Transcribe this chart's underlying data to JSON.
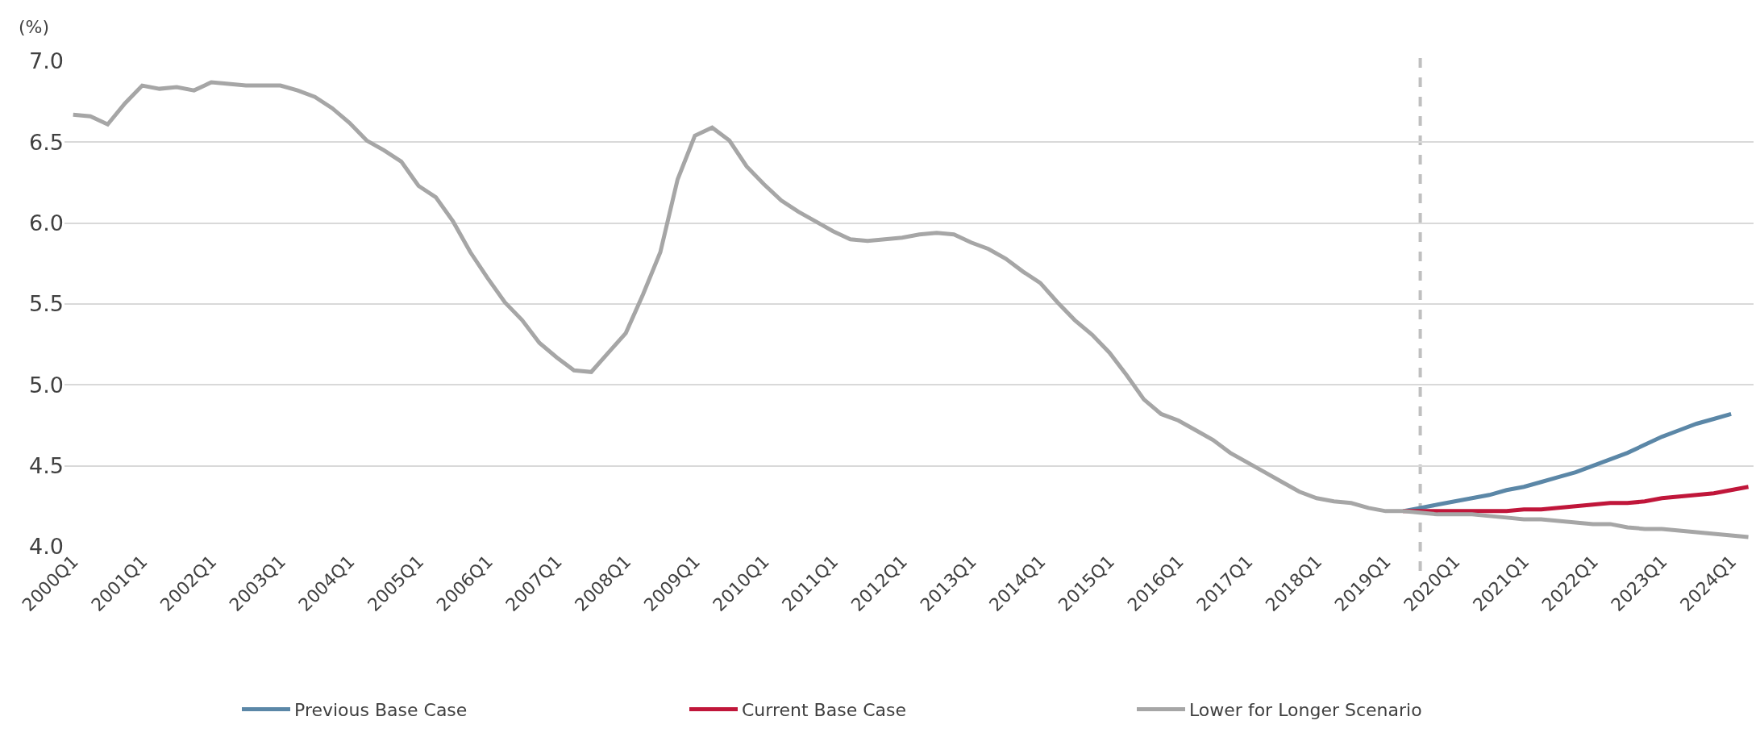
{
  "chart_data": {
    "type": "line",
    "ylabel": "(%)",
    "categories": [
      "2000Q1",
      null,
      null,
      null,
      "2001Q1",
      null,
      null,
      null,
      "2002Q1",
      null,
      null,
      null,
      "2003Q1",
      null,
      null,
      null,
      "2004Q1",
      null,
      null,
      null,
      "2005Q1",
      null,
      null,
      null,
      "2006Q1",
      null,
      null,
      null,
      "2007Q1",
      null,
      null,
      null,
      "2008Q1",
      null,
      null,
      null,
      "2009Q1",
      null,
      null,
      null,
      "2010Q1",
      null,
      null,
      null,
      "2011Q1",
      null,
      null,
      null,
      "2012Q1",
      null,
      null,
      null,
      "2013Q1",
      null,
      null,
      null,
      "2014Q1",
      null,
      null,
      null,
      "2015Q1",
      null,
      null,
      null,
      "2016Q1",
      null,
      null,
      null,
      "2017Q1",
      null,
      null,
      null,
      "2018Q1",
      null,
      null,
      null,
      "2019Q1",
      null,
      null,
      null,
      "2020Q1",
      null,
      null,
      null,
      "2021Q1",
      null,
      null,
      null,
      "2022Q1",
      null,
      null,
      null,
      "2023Q1",
      null,
      null,
      null,
      "2024Q1",
      null
    ],
    "series": [
      {
        "name": "Previous Base Case",
        "color": "#5b87a7",
        "values": [
          null,
          null,
          null,
          null,
          null,
          null,
          null,
          null,
          null,
          null,
          null,
          null,
          null,
          null,
          null,
          null,
          null,
          null,
          null,
          null,
          null,
          null,
          null,
          null,
          null,
          null,
          null,
          null,
          null,
          null,
          null,
          null,
          null,
          null,
          null,
          null,
          null,
          null,
          null,
          null,
          null,
          null,
          null,
          null,
          null,
          null,
          null,
          null,
          null,
          null,
          null,
          null,
          null,
          null,
          null,
          null,
          null,
          null,
          null,
          null,
          null,
          null,
          null,
          null,
          null,
          null,
          null,
          null,
          null,
          null,
          null,
          null,
          null,
          null,
          null,
          null,
          null,
          4.22,
          4.24,
          4.26,
          4.28,
          4.3,
          4.32,
          4.35,
          4.37,
          4.4,
          4.43,
          4.46,
          4.5,
          4.54,
          4.58,
          4.63,
          4.68,
          4.72,
          4.76,
          4.79,
          4.82,
          null
        ]
      },
      {
        "name": "Current Base Case",
        "color": "#c0163a",
        "values": [
          null,
          null,
          null,
          null,
          null,
          null,
          null,
          null,
          null,
          null,
          null,
          null,
          null,
          null,
          null,
          null,
          null,
          null,
          null,
          null,
          null,
          null,
          null,
          null,
          null,
          null,
          null,
          null,
          null,
          null,
          null,
          null,
          null,
          null,
          null,
          null,
          null,
          null,
          null,
          null,
          null,
          null,
          null,
          null,
          null,
          null,
          null,
          null,
          null,
          null,
          null,
          null,
          null,
          null,
          null,
          null,
          null,
          null,
          null,
          null,
          null,
          null,
          null,
          null,
          null,
          null,
          null,
          null,
          null,
          null,
          null,
          null,
          null,
          null,
          null,
          null,
          null,
          4.22,
          4.22,
          4.22,
          4.22,
          4.22,
          4.22,
          4.22,
          4.23,
          4.23,
          4.24,
          4.25,
          4.26,
          4.27,
          4.27,
          4.28,
          4.3,
          4.31,
          4.32,
          4.33,
          4.35,
          4.37
        ]
      },
      {
        "name": "Lower for Longer Scenario",
        "color": "#a6a6a6",
        "values": [
          6.67,
          6.66,
          6.61,
          6.74,
          6.85,
          6.83,
          6.84,
          6.82,
          6.87,
          6.86,
          6.85,
          6.85,
          6.85,
          6.82,
          6.78,
          6.71,
          6.62,
          6.51,
          6.45,
          6.38,
          6.23,
          6.16,
          6.01,
          5.82,
          5.66,
          5.51,
          5.4,
          5.26,
          5.17,
          5.09,
          5.08,
          5.2,
          5.32,
          5.56,
          5.82,
          6.27,
          6.54,
          6.59,
          6.51,
          6.35,
          6.24,
          6.14,
          6.07,
          6.01,
          5.95,
          5.9,
          5.89,
          5.9,
          5.91,
          5.93,
          5.94,
          5.93,
          5.88,
          5.84,
          5.78,
          5.7,
          5.63,
          5.51,
          5.4,
          5.31,
          5.2,
          5.06,
          4.91,
          4.82,
          4.78,
          4.72,
          4.66,
          4.58,
          4.52,
          4.46,
          4.4,
          4.34,
          4.3,
          4.28,
          4.27,
          4.24,
          4.22,
          4.22,
          4.21,
          4.2,
          4.2,
          4.2,
          4.19,
          4.18,
          4.17,
          4.17,
          4.16,
          4.15,
          4.14,
          4.14,
          4.12,
          4.11,
          4.11,
          4.1,
          4.09,
          4.08,
          4.07,
          4.06
        ]
      }
    ],
    "ylim": [
      4.0,
      7.0
    ],
    "yticks": [
      {
        "value": 4,
        "label": "4.0"
      },
      {
        "value": 4.5,
        "label": "4.5"
      },
      {
        "value": 5,
        "label": "5.0"
      },
      {
        "value": 5.5,
        "label": "5.5"
      },
      {
        "value": 6,
        "label": "6.0"
      },
      {
        "value": 6.5,
        "label": "6.5"
      },
      {
        "value": 7,
        "label": "7.0"
      }
    ],
    "grid": "y",
    "legend": "bottom",
    "marker": "none",
    "line_style": "solid"
  }
}
